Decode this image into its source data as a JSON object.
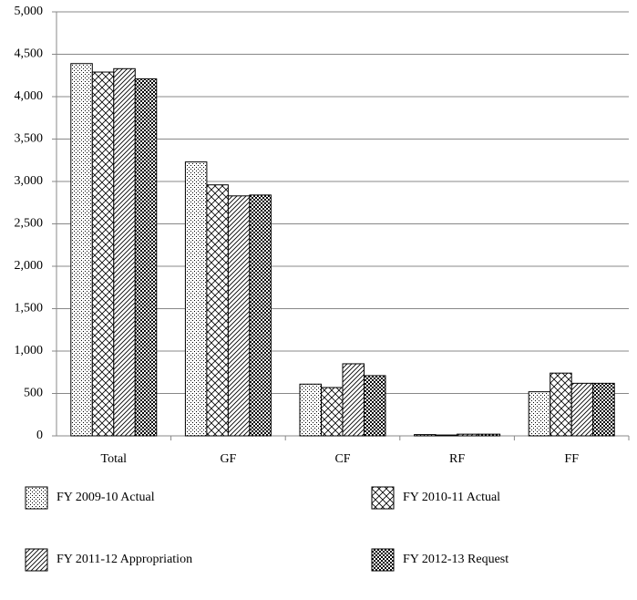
{
  "chart_data": {
    "type": "bar",
    "categories": [
      "Total",
      "GF",
      "CF",
      "RF",
      "FF"
    ],
    "series": [
      {
        "name": "FY 2009-10 Actual",
        "color": "#000000",
        "pattern": "dots",
        "values": [
          4390,
          3230,
          610,
          15,
          520
        ]
      },
      {
        "name": "FY 2010-11 Actual",
        "color": "#000000",
        "pattern": "crosshatch",
        "values": [
          4290,
          2960,
          570,
          10,
          740
        ]
      },
      {
        "name": "FY 2011-12 Appropriation",
        "color": "#000000",
        "pattern": "diagonal",
        "values": [
          4330,
          2830,
          850,
          20,
          620
        ]
      },
      {
        "name": "FY 2012-13 Request",
        "color": "#000000",
        "pattern": "checker",
        "values": [
          4210,
          2840,
          710,
          20,
          620
        ]
      }
    ],
    "ylim": [
      0,
      5000
    ],
    "yticks": [
      0,
      500,
      {
        "value": 1000,
        "label": "1,000"
      },
      {
        "value": 1500,
        "label": "1,500"
      },
      {
        "value": 2000,
        "label": "2,000"
      },
      {
        "value": 2500,
        "label": "2,500"
      },
      {
        "value": 3000,
        "label": "3,000"
      },
      {
        "value": 3500,
        "label": "3,500"
      },
      {
        "value": 4000,
        "label": "4,000"
      },
      {
        "value": 4500,
        "label": "4,500"
      },
      {
        "value": 5000,
        "label": "5,000"
      }
    ],
    "grid": true
  }
}
